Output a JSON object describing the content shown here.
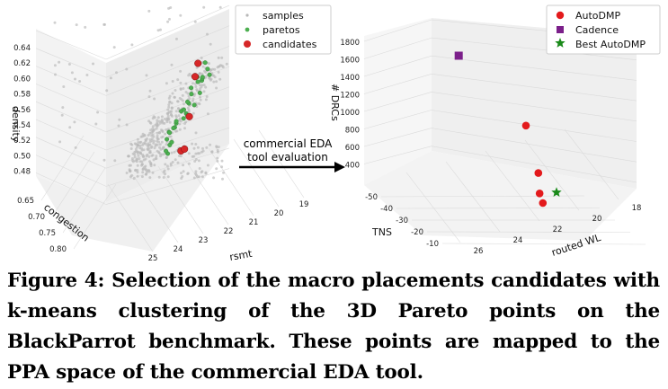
{
  "chart_data": [
    {
      "type": "scatter",
      "axes_labels": {
        "x": "rsmt",
        "y": "congestion",
        "z": "density"
      },
      "x_ticks": [
        "25",
        "24",
        "23",
        "22",
        "21",
        "20",
        "19"
      ],
      "y_ticks": [
        "0.65",
        "0.70",
        "0.75",
        "0.80"
      ],
      "z_ticks": [
        "0.64",
        "0.62",
        "0.60",
        "0.58",
        "0.56",
        "0.54",
        "0.52",
        "0.50",
        "0.48"
      ],
      "legend": [
        "samples",
        "paretos",
        "candidates"
      ],
      "legend_position": "top-right",
      "colors": {
        "samples": "#b8b8b8",
        "paretos": "#4caf50",
        "candidates": "#d62728"
      },
      "candidates": [
        {
          "x": 23.3,
          "y": 0.79,
          "z": 0.52
        },
        {
          "x": 23.0,
          "y": 0.8,
          "z": 0.522
        },
        {
          "x": 22.4,
          "y": 0.78,
          "z": 0.556
        },
        {
          "x": 21.6,
          "y": 0.74,
          "z": 0.598
        },
        {
          "x": 21.2,
          "y": 0.72,
          "z": 0.612
        }
      ]
    },
    {
      "type": "scatter",
      "axes_labels": {
        "x": "routed WL",
        "y": "TNS",
        "z": "# DRCs"
      },
      "x_ticks": [
        "26",
        "24",
        "22",
        "20",
        "18"
      ],
      "y_ticks": [
        "-50",
        "-40",
        "-30",
        "-20",
        "-10"
      ],
      "z_ticks": [
        "1800",
        "1600",
        "1400",
        "1200",
        "1000",
        "800",
        "600",
        "400"
      ],
      "legend": [
        "AutoDMP",
        "Cadence",
        "Best AutoDMP"
      ],
      "legend_position": "top-right",
      "colors": {
        "AutoDMP": "#e31a1c",
        "Cadence": "#7b1f8a",
        "Best AutoDMP": "#1a8a1a"
      },
      "autodmp_points": [
        {
          "routed_wl": 21.5,
          "tns": -25,
          "drcs": 1050
        },
        {
          "routed_wl": 21.3,
          "tns": -22,
          "drcs": 500
        },
        {
          "routed_wl": 21.6,
          "tns": -18,
          "drcs": 280
        },
        {
          "routed_wl": 22.0,
          "tns": -12,
          "drcs": 200
        }
      ],
      "cadence_points": [
        {
          "routed_wl": 22.0,
          "tns": -48,
          "drcs": 1750
        }
      ],
      "best_autodmp_points": [
        {
          "routed_wl": 21.2,
          "tns": -20,
          "drcs": 280
        }
      ]
    }
  ],
  "arrow_label": [
    "commercial EDA",
    "tool evaluation"
  ],
  "caption": "Figure 4: Selection of the macro placements candidates with k-means clustering of the 3D Pareto points on the BlackParrot benchmark. These points are mapped to the PPA space of the commercial EDA tool."
}
